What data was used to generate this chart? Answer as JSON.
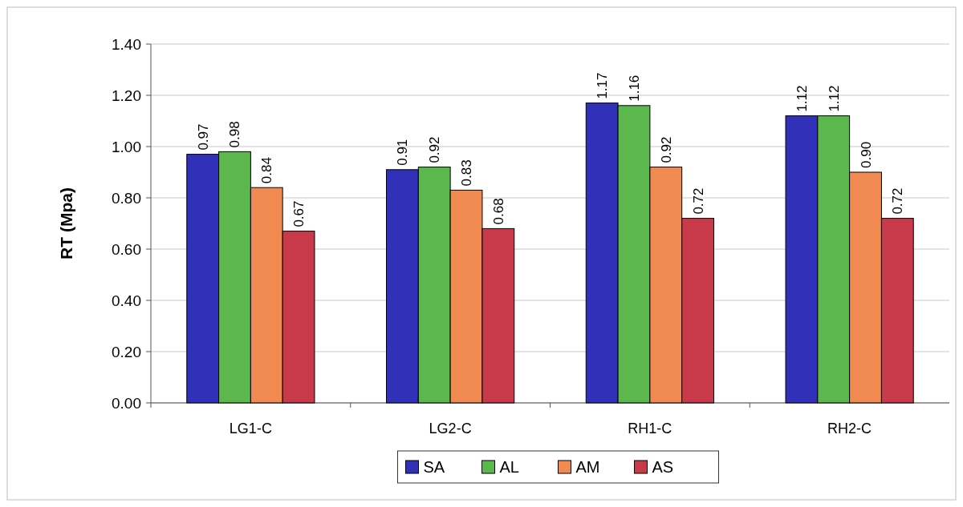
{
  "chart_data": {
    "type": "bar",
    "ylabel": "RT (Mpa)",
    "categories": [
      "LG1-C",
      "LG2-C",
      "RH1-C",
      "RH2-C"
    ],
    "series": [
      {
        "name": "SA",
        "color": "#3030b8",
        "values": [
          0.97,
          0.91,
          1.17,
          1.12
        ],
        "value_labels": [
          "0.97",
          "0.91",
          "1.17",
          "1.12"
        ]
      },
      {
        "name": "AL",
        "color": "#5cb84c",
        "values": [
          0.98,
          0.92,
          1.16,
          1.12
        ],
        "value_labels": [
          "0.98",
          "0.92",
          "1.16",
          "1.12"
        ]
      },
      {
        "name": "AM",
        "color": "#f08a50",
        "values": [
          0.84,
          0.83,
          0.92,
          0.9
        ],
        "value_labels": [
          "0.84",
          "0.83",
          "0.92",
          "0.90"
        ]
      },
      {
        "name": "AS",
        "color": "#c83a4a",
        "values": [
          0.67,
          0.68,
          0.72,
          0.72
        ],
        "value_labels": [
          "0.67",
          "0.68",
          "0.72",
          "0.72"
        ]
      }
    ],
    "ylim": [
      0,
      1.4
    ],
    "yticks": [
      {
        "value": 0,
        "label": "0.00"
      },
      {
        "value": 0.2,
        "label": "0.20"
      },
      {
        "value": 0.4,
        "label": "0.40"
      },
      {
        "value": 0.6,
        "label": "0.60"
      },
      {
        "value": 0.8,
        "label": "0.80"
      },
      {
        "value": 1,
        "label": "1.00"
      },
      {
        "value": 1.2,
        "label": "1.20"
      },
      {
        "value": 1.4,
        "label": "1.40"
      }
    ],
    "grid": "y",
    "legend": "bottom"
  }
}
